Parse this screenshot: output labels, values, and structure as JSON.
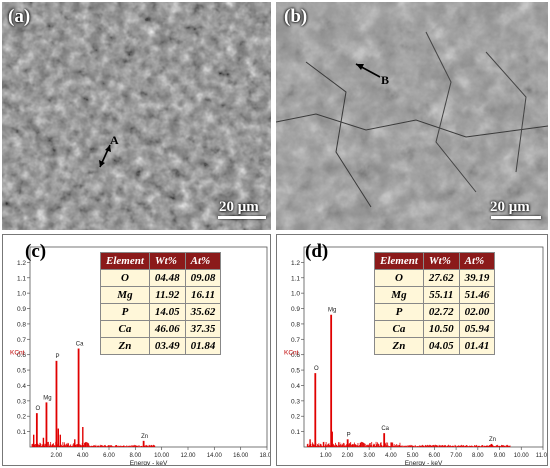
{
  "panels": {
    "a": {
      "label": "(a)",
      "scale": "20 μm",
      "marker": "A"
    },
    "b": {
      "label": "(b)",
      "scale": "20 μm",
      "marker": "B"
    },
    "c": {
      "label": "(c)"
    },
    "d": {
      "label": "(d)"
    }
  },
  "eds_axes": {
    "xlabel": "Energy - keV",
    "ylabel": "KCnt"
  },
  "chart_data": [
    {
      "type": "bar",
      "panel": "c",
      "xlabel": "Energy - keV",
      "ylabel": "KCnt",
      "xlim": [
        0,
        18
      ],
      "ylim": [
        0,
        1.3
      ],
      "x_ticks": [
        "2.00",
        "4.00",
        "6.00",
        "8.00",
        "10.00",
        "12.00",
        "14.00",
        "16.00",
        "18.00"
      ],
      "y_ticks": [
        "0.1",
        "0.2",
        "0.3",
        "0.4",
        "0.5",
        "0.6",
        "0.7",
        "0.8",
        "0.9",
        "1.0",
        "1.1",
        "1.2"
      ],
      "peaks": [
        {
          "label": "O",
          "x": 0.52,
          "y": 0.22
        },
        {
          "label": "Mg",
          "x": 1.25,
          "y": 0.29
        },
        {
          "label": "P",
          "x": 2.01,
          "y": 0.56
        },
        {
          "label": "Ca",
          "x": 3.69,
          "y": 0.64
        },
        {
          "label": "Zn",
          "x": 8.63,
          "y": 0.04
        }
      ],
      "minor_peaks": [
        {
          "x": 0.28,
          "y": 0.08
        },
        {
          "x": 1.02,
          "y": 0.06
        },
        {
          "x": 2.15,
          "y": 0.12
        },
        {
          "x": 2.3,
          "y": 0.08
        },
        {
          "x": 4.01,
          "y": 0.13
        },
        {
          "x": 3.4,
          "y": 0.05
        }
      ],
      "table": {
        "headers": [
          "Element",
          "Wt%",
          "At%"
        ],
        "rows": [
          [
            "O",
            "04.48",
            "09.08"
          ],
          [
            "Mg",
            "11.92",
            "16.11"
          ],
          [
            "P",
            "14.05",
            "35.62"
          ],
          [
            "Ca",
            "46.06",
            "37.35"
          ],
          [
            "Zn",
            "03.49",
            "01.84"
          ]
        ]
      }
    },
    {
      "type": "bar",
      "panel": "d",
      "xlabel": "Energy - keV",
      "ylabel": "KCnt",
      "xlim": [
        0,
        11
      ],
      "ylim": [
        0,
        1.3
      ],
      "x_ticks": [
        "1.00",
        "2.00",
        "3.00",
        "4.00",
        "5.00",
        "6.00",
        "7.00",
        "8.00",
        "9.00",
        "10.00",
        "11.00"
      ],
      "y_ticks": [
        "0.1",
        "0.2",
        "0.3",
        "0.4",
        "0.5",
        "0.6",
        "0.7",
        "0.8",
        "0.9",
        "1.0",
        "1.1",
        "1.2"
      ],
      "peaks": [
        {
          "label": "O",
          "x": 0.52,
          "y": 0.48
        },
        {
          "label": "Mg",
          "x": 1.25,
          "y": 0.86
        },
        {
          "label": "P",
          "x": 2.01,
          "y": 0.05
        },
        {
          "label": "Ca",
          "x": 3.69,
          "y": 0.09
        },
        {
          "label": "Zn",
          "x": 8.63,
          "y": 0.02
        }
      ],
      "minor_peaks": [
        {
          "x": 0.28,
          "y": 0.05
        },
        {
          "x": 1.3,
          "y": 0.1
        },
        {
          "x": 4.01,
          "y": 0.03
        }
      ],
      "table": {
        "headers": [
          "Element",
          "Wt%",
          "At%"
        ],
        "rows": [
          [
            "O",
            "27.62",
            "39.19"
          ],
          [
            "Mg",
            "55.11",
            "51.46"
          ],
          [
            "P",
            "02.72",
            "02.00"
          ],
          [
            "Ca",
            "10.50",
            "05.94"
          ],
          [
            "Zn",
            "04.05",
            "01.41"
          ]
        ]
      }
    }
  ]
}
